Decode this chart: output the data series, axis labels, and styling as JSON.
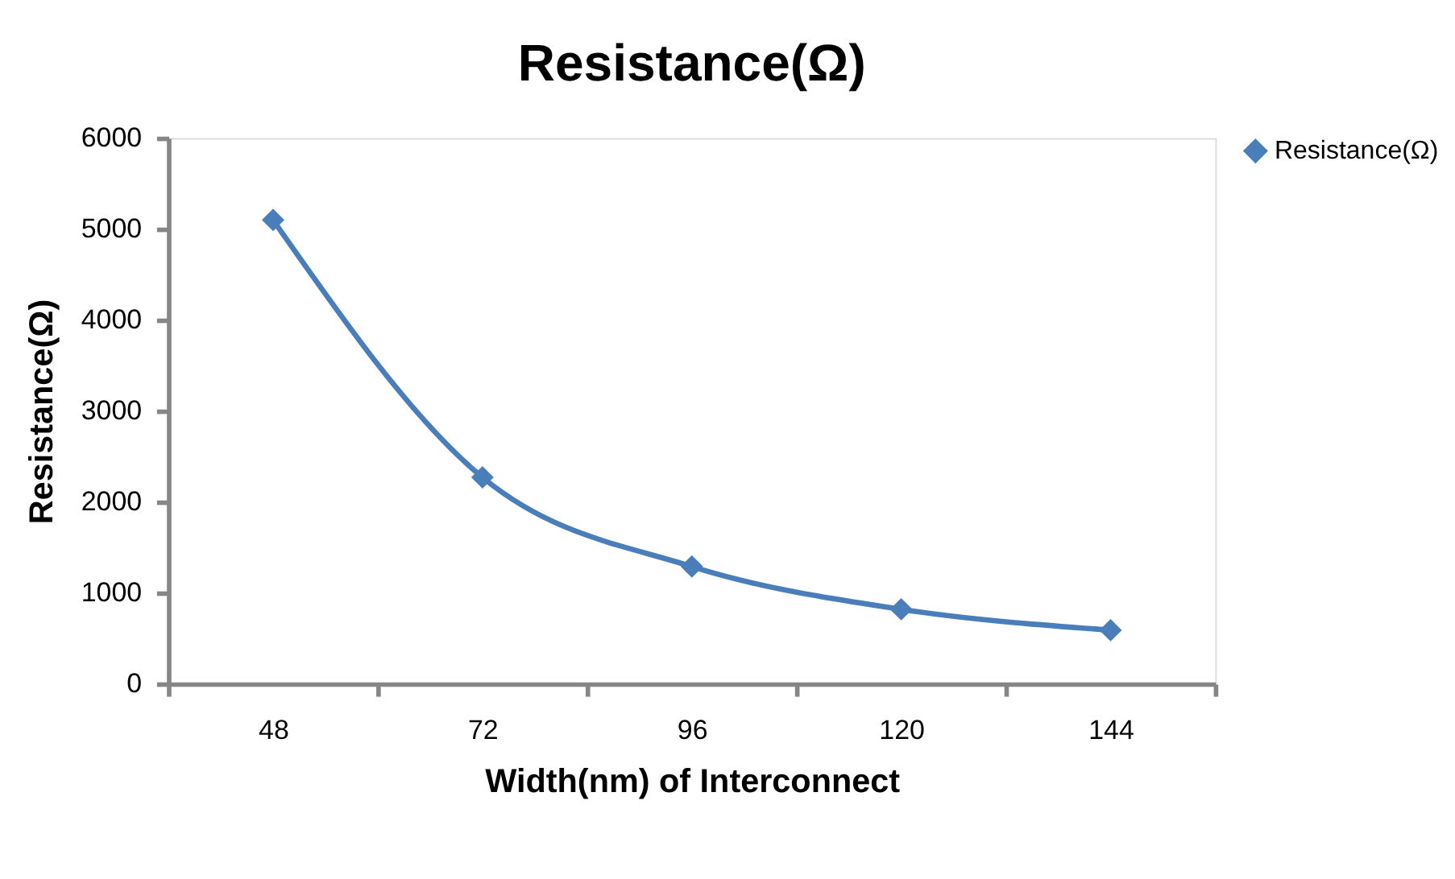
{
  "chart_data": {
    "type": "line",
    "title": "Resistance(Ω)",
    "xlabel": "Width(nm) of Interconnect",
    "ylabel": "Resistance(Ω)",
    "categories": [
      "48",
      "72",
      "96",
      "120",
      "144"
    ],
    "series": [
      {
        "name": "Resistance(Ω)",
        "color": "#4a7ebb",
        "values": [
          5100,
          2270,
          1290,
          820,
          590
        ]
      }
    ],
    "ylim": [
      0,
      6000
    ],
    "yticks": [
      0,
      1000,
      2000,
      3000,
      4000,
      5000,
      6000
    ],
    "grid": false,
    "legend": "right",
    "marker": "diamond",
    "line_style": "solid"
  }
}
